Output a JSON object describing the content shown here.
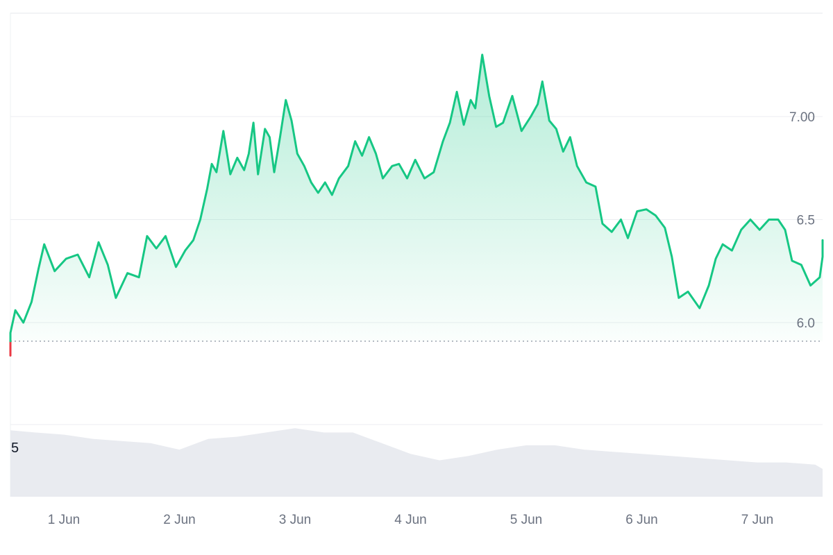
{
  "chart_data": {
    "type": "area",
    "x_unit": "date",
    "x_ticks": [
      "1 Jun",
      "2 Jun",
      "3 Jun",
      "4 Jun",
      "5 Jun",
      "6 Jun",
      "7 Jun"
    ],
    "y_ticks": [
      "6.0",
      "6.5",
      "7.00"
    ],
    "y_range": [
      5.5,
      7.5
    ],
    "baseline": 5.91,
    "up_color": "#16c784",
    "down_color": "#ea3943",
    "grid": "horizontal",
    "series": [
      {
        "values": [
          [
            0.0,
            5.84
          ],
          [
            0.03,
            5.95
          ],
          [
            0.08,
            6.06
          ],
          [
            0.15,
            6.0
          ],
          [
            0.22,
            6.1
          ],
          [
            0.28,
            6.26
          ],
          [
            0.33,
            6.38
          ],
          [
            0.42,
            6.25
          ],
          [
            0.52,
            6.31
          ],
          [
            0.62,
            6.33
          ],
          [
            0.72,
            6.22
          ],
          [
            0.8,
            6.39
          ],
          [
            0.88,
            6.28
          ],
          [
            0.95,
            6.12
          ],
          [
            1.05,
            6.24
          ],
          [
            1.15,
            6.22
          ],
          [
            1.22,
            6.42
          ],
          [
            1.3,
            6.36
          ],
          [
            1.38,
            6.42
          ],
          [
            1.47,
            6.27
          ],
          [
            1.55,
            6.35
          ],
          [
            1.62,
            6.4
          ],
          [
            1.68,
            6.5
          ],
          [
            1.74,
            6.65
          ],
          [
            1.78,
            6.77
          ],
          [
            1.82,
            6.73
          ],
          [
            1.88,
            6.93
          ],
          [
            1.94,
            6.72
          ],
          [
            2.0,
            6.8
          ],
          [
            2.06,
            6.74
          ],
          [
            2.1,
            6.82
          ],
          [
            2.14,
            6.97
          ],
          [
            2.18,
            6.72
          ],
          [
            2.24,
            6.94
          ],
          [
            2.28,
            6.9
          ],
          [
            2.32,
            6.73
          ],
          [
            2.37,
            6.9
          ],
          [
            2.42,
            7.08
          ],
          [
            2.47,
            6.98
          ],
          [
            2.52,
            6.82
          ],
          [
            2.58,
            6.76
          ],
          [
            2.64,
            6.68
          ],
          [
            2.7,
            6.63
          ],
          [
            2.76,
            6.68
          ],
          [
            2.82,
            6.62
          ],
          [
            2.88,
            6.7
          ],
          [
            2.96,
            6.76
          ],
          [
            3.02,
            6.88
          ],
          [
            3.08,
            6.81
          ],
          [
            3.14,
            6.9
          ],
          [
            3.2,
            6.82
          ],
          [
            3.26,
            6.7
          ],
          [
            3.34,
            6.76
          ],
          [
            3.4,
            6.77
          ],
          [
            3.47,
            6.7
          ],
          [
            3.54,
            6.79
          ],
          [
            3.62,
            6.7
          ],
          [
            3.7,
            6.73
          ],
          [
            3.78,
            6.88
          ],
          [
            3.84,
            6.97
          ],
          [
            3.9,
            7.12
          ],
          [
            3.96,
            6.96
          ],
          [
            4.02,
            7.08
          ],
          [
            4.06,
            7.04
          ],
          [
            4.12,
            7.3
          ],
          [
            4.18,
            7.1
          ],
          [
            4.24,
            6.95
          ],
          [
            4.3,
            6.97
          ],
          [
            4.38,
            7.1
          ],
          [
            4.46,
            6.93
          ],
          [
            4.54,
            7.0
          ],
          [
            4.6,
            7.06
          ],
          [
            4.64,
            7.17
          ],
          [
            4.7,
            6.98
          ],
          [
            4.76,
            6.94
          ],
          [
            4.82,
            6.83
          ],
          [
            4.88,
            6.9
          ],
          [
            4.94,
            6.76
          ],
          [
            5.02,
            6.68
          ],
          [
            5.1,
            6.66
          ],
          [
            5.16,
            6.48
          ],
          [
            5.24,
            6.44
          ],
          [
            5.32,
            6.5
          ],
          [
            5.38,
            6.41
          ],
          [
            5.46,
            6.54
          ],
          [
            5.54,
            6.55
          ],
          [
            5.62,
            6.52
          ],
          [
            5.7,
            6.46
          ],
          [
            5.76,
            6.32
          ],
          [
            5.82,
            6.12
          ],
          [
            5.9,
            6.15
          ],
          [
            6.0,
            6.07
          ],
          [
            6.08,
            6.18
          ],
          [
            6.14,
            6.31
          ],
          [
            6.2,
            6.38
          ],
          [
            6.28,
            6.35
          ],
          [
            6.36,
            6.45
          ],
          [
            6.44,
            6.5
          ],
          [
            6.52,
            6.45
          ],
          [
            6.6,
            6.5
          ],
          [
            6.68,
            6.5
          ],
          [
            6.74,
            6.45
          ],
          [
            6.8,
            6.3
          ],
          [
            6.88,
            6.28
          ],
          [
            6.96,
            6.18
          ],
          [
            7.04,
            6.22
          ],
          [
            7.12,
            6.32
          ],
          [
            7.2,
            6.34
          ],
          [
            7.28,
            6.38
          ],
          [
            7.36,
            6.4
          ],
          [
            7.42,
            6.4
          ],
          [
            7.48,
            6.36
          ]
        ]
      }
    ],
    "volume": {
      "label": "5",
      "values": [
        [
          -0.3,
          0.31
        ],
        [
          0.25,
          0.3
        ],
        [
          0.5,
          0.29
        ],
        [
          0.75,
          0.27
        ],
        [
          1.0,
          0.26
        ],
        [
          1.25,
          0.25
        ],
        [
          1.5,
          0.22
        ],
        [
          1.75,
          0.27
        ],
        [
          2.0,
          0.28
        ],
        [
          2.25,
          0.3
        ],
        [
          2.5,
          0.32
        ],
        [
          2.75,
          0.3
        ],
        [
          3.0,
          0.3
        ],
        [
          3.25,
          0.25
        ],
        [
          3.5,
          0.2
        ],
        [
          3.75,
          0.17
        ],
        [
          4.0,
          0.19
        ],
        [
          4.25,
          0.22
        ],
        [
          4.5,
          0.24
        ],
        [
          4.75,
          0.24
        ],
        [
          5.0,
          0.22
        ],
        [
          5.25,
          0.21
        ],
        [
          5.5,
          0.2
        ],
        [
          5.75,
          0.19
        ],
        [
          6.0,
          0.18
        ],
        [
          6.25,
          0.17
        ],
        [
          6.5,
          0.16
        ],
        [
          6.75,
          0.16
        ],
        [
          7.0,
          0.15
        ],
        [
          7.25,
          0.13
        ],
        [
          7.5,
          0.12
        ]
      ]
    }
  }
}
